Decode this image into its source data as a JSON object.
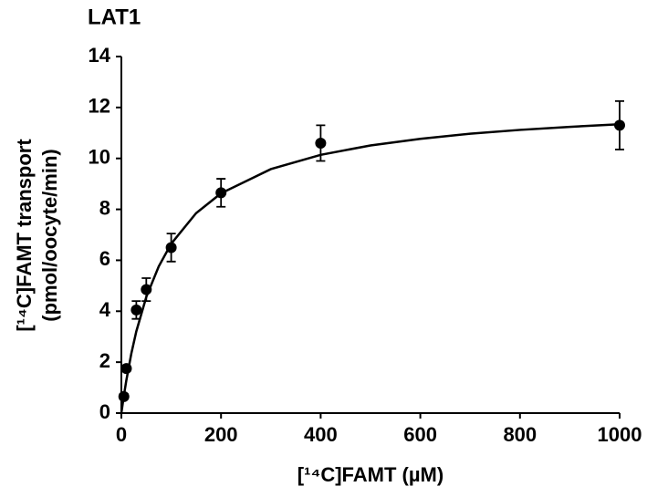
{
  "chart_data": {
    "type": "scatter",
    "title": "LAT1",
    "x_label": "[¹⁴C]FAMT (µM)",
    "y_label": [
      "[¹⁴C]FAMT transport",
      "(pmol/oocyte/min)"
    ],
    "points": {
      "x": [
        5,
        10,
        30,
        50,
        100,
        200,
        400,
        1000
      ],
      "values": [
        0.65,
        1.75,
        4.05,
        4.85,
        6.5,
        8.65,
        10.6,
        11.3
      ],
      "errors": [
        0.1,
        0.1,
        0.35,
        0.45,
        0.55,
        0.55,
        0.7,
        0.95
      ],
      "color": "#000000"
    },
    "curve": {
      "x": [
        0,
        5,
        10,
        20,
        30,
        50,
        75,
        100,
        150,
        200,
        300,
        400,
        500,
        600,
        700,
        800,
        900,
        1000
      ],
      "values": [
        0,
        0.68,
        1.29,
        2.34,
        3.21,
        4.56,
        5.76,
        6.65,
        7.85,
        8.63,
        9.58,
        10.14,
        10.51,
        10.77,
        10.97,
        11.12,
        11.24,
        11.34
      ],
      "color": "#000000"
    },
    "xlim": [
      0,
      1000
    ],
    "xticks": [
      0,
      200,
      400,
      600,
      800,
      1000
    ],
    "ylim": [
      0,
      14
    ],
    "yticks": [
      0,
      2,
      4,
      6,
      8,
      10,
      12,
      14
    ]
  }
}
